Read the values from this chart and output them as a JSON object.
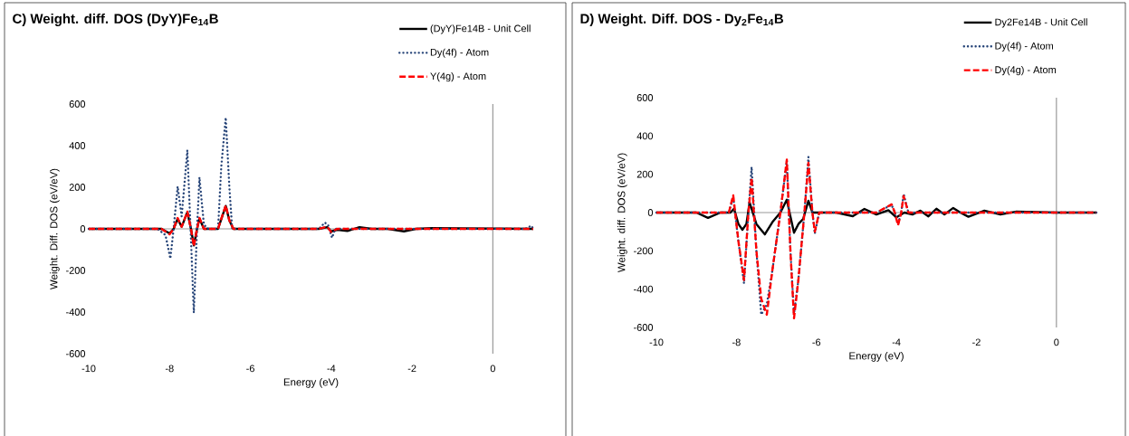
{
  "chart_data": [
    {
      "type": "line",
      "title": "C) Weight. diff. DOS (DyY)Fe$_{14}$B",
      "xlabel": "Energy (eV)",
      "ylabel": "Weight. Diff. DOS (eV/eV)",
      "xlim": [
        -10,
        1
      ],
      "ylim": [
        -600,
        600
      ],
      "xticks": [
        -10,
        -8,
        -6,
        -4,
        -2,
        0
      ],
      "yticks": [
        -600,
        -400,
        -200,
        0,
        200,
        400,
        600
      ],
      "legend": "top right",
      "series": [
        {
          "name": "(DyY)Fe14B - Unit Cell",
          "color": "#000000",
          "line_style": "solid",
          "x": [
            -10,
            -8.2,
            -8.0,
            -7.9,
            -7.8,
            -7.7,
            -7.56,
            -7.47,
            -7.4,
            -7.32,
            -7.26,
            -7.15,
            -7.0,
            -6.8,
            -6.7,
            -6.61,
            -6.52,
            -6.42,
            -4.3,
            -4.1,
            -4.0,
            -3.85,
            -3.6,
            -3.3,
            -3.0,
            -2.6,
            -2.2,
            -1.9,
            -1.5,
            1.0
          ],
          "values": [
            0,
            0,
            -22,
            0,
            48,
            10,
            80,
            0,
            -80,
            0,
            50,
            0,
            0,
            0,
            58,
            110,
            40,
            0,
            0,
            8,
            -12,
            -5,
            -10,
            8,
            0,
            0,
            -12,
            0,
            3,
            0
          ]
        },
        {
          "name": "Dy(4f) - Atom",
          "color": "#264478",
          "line_style": "dotted",
          "x": [
            -10,
            -8.3,
            -8.1,
            -7.98,
            -7.9,
            -7.8,
            -7.7,
            -7.56,
            -7.48,
            -7.4,
            -7.32,
            -7.26,
            -7.15,
            -7.04,
            -6.8,
            -6.72,
            -6.61,
            -6.52,
            -6.45,
            -4.3,
            -4.16,
            -4.08,
            -3.98,
            -3.9,
            -3.5,
            0.8,
            0.95,
            1
          ],
          "values": [
            0,
            0,
            -30,
            -143,
            0,
            204,
            60,
            378,
            0,
            -404,
            0,
            248,
            20,
            0,
            0,
            300,
            535,
            200,
            0,
            0,
            30,
            20,
            -43,
            0,
            0,
            0,
            15,
            0
          ]
        },
        {
          "name": "Y(4g) - Atom",
          "color": "#ff0000",
          "line_style": "dashed",
          "x": [
            -10,
            -8.2,
            -8.0,
            -7.9,
            -7.8,
            -7.7,
            -7.56,
            -7.47,
            -7.4,
            -7.32,
            -7.26,
            -7.15,
            -7.0,
            -6.8,
            -6.7,
            -6.61,
            -6.52,
            -6.42,
            -4.3,
            -4.1,
            -4.0,
            -3.85,
            1
          ],
          "values": [
            0,
            0,
            -26,
            0,
            52,
            10,
            83,
            0,
            -83,
            0,
            52,
            0,
            0,
            0,
            60,
            113,
            40,
            0,
            0,
            10,
            -15,
            0,
            0
          ]
        }
      ]
    },
    {
      "type": "line",
      "title": "D) Weight. Diff. DOS - Dy$_{2}$Fe$_{14}$B",
      "xlabel": "Energy (eV)",
      "ylabel": "Weight. diff. DOS (eV/eV)",
      "xlim": [
        -10,
        1
      ],
      "ylim": [
        -600,
        600
      ],
      "xticks": [
        -10,
        -8,
        -6,
        -4,
        -2,
        0
      ],
      "yticks": [
        -600,
        -400,
        -200,
        0,
        200,
        400,
        600
      ],
      "legend": "top right",
      "series": [
        {
          "name": "Dy2Fe14B - Unit Cell",
          "color": "#000000",
          "line_style": "solid",
          "x": [
            -10,
            -9.0,
            -8.71,
            -8.4,
            -8.15,
            -8.06,
            -7.95,
            -7.85,
            -7.75,
            -7.67,
            -7.5,
            -7.29,
            -7.1,
            -6.9,
            -6.74,
            -6.65,
            -6.56,
            -6.45,
            -6.33,
            -6.2,
            -6.1,
            -6.0,
            -5.5,
            -5.09,
            -4.8,
            -4.5,
            -4.2,
            -4.0,
            -3.8,
            -3.6,
            -3.4,
            -3.2,
            -3.0,
            -2.8,
            -2.58,
            -2.4,
            -2.2,
            -1.8,
            -1.4,
            -1,
            0,
            1
          ],
          "values": [
            0,
            0,
            -28,
            0,
            0,
            20,
            -60,
            -90,
            -60,
            52,
            -60,
            -114,
            -50,
            0,
            67,
            -20,
            -105,
            -60,
            -33,
            62,
            0,
            0,
            0,
            -19,
            19,
            -10,
            12,
            -25,
            0,
            -10,
            10,
            -20,
            20,
            -10,
            24,
            0,
            -22,
            10,
            -10,
            5,
            0,
            0
          ]
        },
        {
          "name": "Dy(4f) - Atom",
          "color": "#264478",
          "line_style": "dotted",
          "x": [
            -10,
            -8.19,
            -8.08,
            -7.95,
            -7.81,
            -7.7,
            -7.62,
            -7.5,
            -7.38,
            -7.24,
            -7.1,
            -6.9,
            -6.74,
            -6.65,
            -6.56,
            -6.45,
            -6.3,
            -6.2,
            -6.1,
            -6.04,
            -5.93,
            -4.5,
            -4.12,
            -4.04,
            -3.96,
            -3.88,
            -3.82,
            -3.7,
            -3.2,
            1
          ],
          "values": [
            0,
            0,
            80,
            -150,
            -370,
            0,
            238,
            -200,
            -533,
            -480,
            -300,
            0,
            270,
            -200,
            -528,
            -350,
            0,
            290,
            0,
            -110,
            0,
            0,
            40,
            0,
            -60,
            0,
            97,
            0,
            0,
            0
          ]
        },
        {
          "name": "Dy(4g) - Atom",
          "color": "#ff0000",
          "line_style": "dashed",
          "x": [
            -10,
            -8.19,
            -8.08,
            -7.95,
            -7.81,
            -7.7,
            -7.62,
            -7.5,
            -7.38,
            -7.24,
            -7.1,
            -6.9,
            -6.74,
            -6.65,
            -6.56,
            -6.45,
            -6.3,
            -6.2,
            -6.1,
            -6.04,
            -5.93,
            -4.5,
            -4.12,
            -4.04,
            -3.96,
            -3.88,
            -3.82,
            -3.7,
            -3.2,
            1
          ],
          "values": [
            0,
            0,
            90,
            -150,
            -352,
            0,
            181,
            -200,
            -450,
            -533,
            -300,
            0,
            276,
            -200,
            -552,
            -350,
            0,
            260,
            0,
            -100,
            0,
            0,
            43,
            0,
            -67,
            0,
            86,
            0,
            0,
            0
          ]
        }
      ]
    }
  ]
}
